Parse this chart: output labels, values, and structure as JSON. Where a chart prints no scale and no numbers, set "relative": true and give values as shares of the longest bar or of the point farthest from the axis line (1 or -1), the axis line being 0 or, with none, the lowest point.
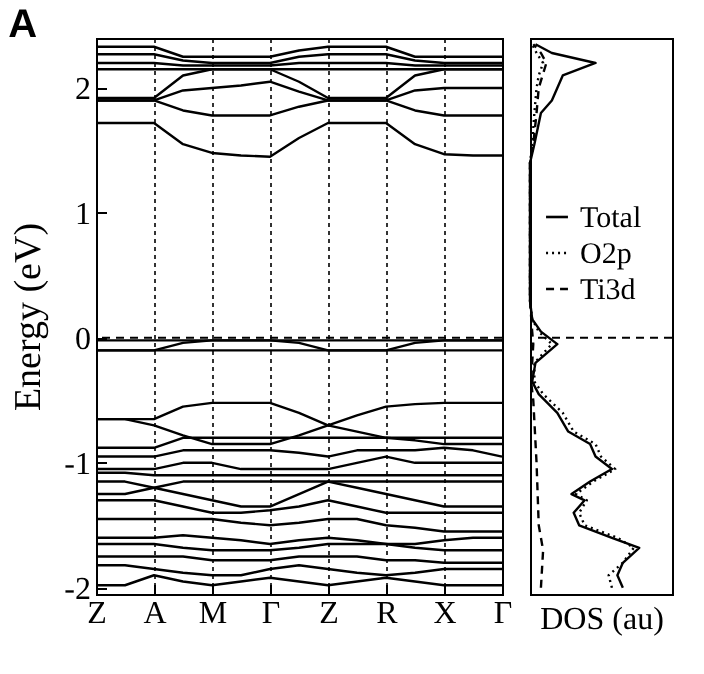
{
  "chart_data": [
    {
      "type": "line",
      "title": "A",
      "ylabel": "Energy (eV)",
      "marker": "none",
      "grid": "x",
      "line_style": "solid",
      "categories": [
        "Z",
        null,
        "A",
        null,
        "M",
        null,
        "Γ",
        null,
        "Z",
        null,
        "R",
        null,
        "X",
        null,
        "Γ"
      ],
      "ylim": [
        -2.05,
        2.4
      ],
      "yticks": [
        -2,
        -1,
        0,
        1,
        2
      ],
      "ref_lines": [
        {
          "axis": "y",
          "value": 0,
          "line_style": "dashed",
          "color": "#000000"
        }
      ],
      "series": [
        {
          "color": "#000000",
          "values": [
            2.33,
            2.33,
            2.33,
            2.25,
            2.25,
            2.25,
            2.25,
            2.3,
            2.33,
            2.33,
            2.33,
            2.25,
            2.25,
            2.25,
            2.25
          ]
        },
        {
          "color": "#000000",
          "values": [
            2.27,
            2.27,
            2.27,
            2.22,
            2.2,
            2.2,
            2.2,
            2.25,
            2.27,
            2.27,
            2.27,
            2.22,
            2.2,
            2.2,
            2.2
          ]
        },
        {
          "color": "#000000",
          "values": [
            2.2,
            2.2,
            2.2,
            2.18,
            2.18,
            2.18,
            2.18,
            2.2,
            2.2,
            2.2,
            2.2,
            2.18,
            2.18,
            2.18,
            2.18
          ]
        },
        {
          "color": "#000000",
          "values": [
            2.15,
            2.15,
            2.15,
            2.15,
            2.15,
            2.15,
            2.15,
            2.15,
            2.15,
            2.15,
            2.15,
            2.15,
            2.15,
            2.15,
            2.15
          ]
        },
        {
          "color": "#000000",
          "values": [
            1.92,
            1.92,
            1.92,
            2.1,
            2.15,
            2.15,
            2.15,
            2.05,
            1.92,
            1.92,
            1.92,
            2.1,
            2.15,
            2.15,
            2.15
          ]
        },
        {
          "color": "#000000",
          "values": [
            1.9,
            1.9,
            1.9,
            1.98,
            2.0,
            2.02,
            2.05,
            1.97,
            1.9,
            1.9,
            1.9,
            1.98,
            2.0,
            2.0,
            2.0
          ]
        },
        {
          "color": "#000000",
          "values": [
            1.9,
            1.9,
            1.9,
            1.82,
            1.78,
            1.78,
            1.78,
            1.85,
            1.9,
            1.9,
            1.9,
            1.82,
            1.78,
            1.78,
            1.78
          ]
        },
        {
          "color": "#000000",
          "values": [
            1.72,
            1.72,
            1.72,
            1.55,
            1.48,
            1.46,
            1.45,
            1.6,
            1.72,
            1.72,
            1.72,
            1.55,
            1.47,
            1.46,
            1.46
          ]
        },
        {
          "color": "#000000",
          "values": [
            -0.02,
            -0.02,
            -0.02,
            -0.02,
            -0.02,
            -0.02,
            -0.02,
            -0.02,
            -0.02,
            -0.02,
            -0.02,
            -0.02,
            -0.02,
            -0.02,
            -0.02
          ]
        },
        {
          "color": "#000000",
          "values": [
            -0.1,
            -0.1,
            -0.1,
            -0.04,
            -0.02,
            -0.02,
            -0.02,
            -0.04,
            -0.1,
            -0.1,
            -0.1,
            -0.04,
            -0.02,
            -0.02,
            -0.02
          ]
        },
        {
          "color": "#000000",
          "values": [
            -0.1,
            -0.1,
            -0.1,
            -0.1,
            -0.1,
            -0.1,
            -0.1,
            -0.1,
            -0.1,
            -0.1,
            -0.1,
            -0.1,
            -0.1,
            -0.1,
            -0.1
          ]
        },
        {
          "color": "#000000",
          "values": [
            -0.65,
            -0.65,
            -0.65,
            -0.55,
            -0.52,
            -0.52,
            -0.52,
            -0.6,
            -0.7,
            -0.62,
            -0.55,
            -0.53,
            -0.52,
            -0.52,
            -0.52
          ]
        },
        {
          "color": "#000000",
          "values": [
            -0.65,
            -0.65,
            -0.7,
            -0.78,
            -0.85,
            -0.85,
            -0.85,
            -0.78,
            -0.7,
            -0.75,
            -0.8,
            -0.8,
            -0.8,
            -0.8,
            -0.8
          ]
        },
        {
          "color": "#000000",
          "values": [
            -0.88,
            -0.88,
            -0.88,
            -0.8,
            -0.8,
            -0.8,
            -0.8,
            -0.8,
            -0.8,
            -0.8,
            -0.8,
            -0.82,
            -0.85,
            -0.85,
            -0.85
          ]
        },
        {
          "color": "#000000",
          "values": [
            -0.95,
            -0.95,
            -0.95,
            -0.9,
            -0.9,
            -0.9,
            -0.9,
            -0.92,
            -0.95,
            -0.9,
            -0.9,
            -0.9,
            -0.88,
            -0.9,
            -0.95
          ]
        },
        {
          "color": "#000000",
          "values": [
            -1.05,
            -1.05,
            -1.05,
            -1.0,
            -1.0,
            -1.05,
            -1.05,
            -1.05,
            -1.05,
            -1.0,
            -0.95,
            -1.0,
            -1.0,
            -1.0,
            -1.0
          ]
        },
        {
          "color": "#000000",
          "values": [
            -1.08,
            -1.08,
            -1.1,
            -1.1,
            -1.1,
            -1.1,
            -1.1,
            -1.1,
            -1.1,
            -1.1,
            -1.1,
            -1.1,
            -1.1,
            -1.1,
            -1.1
          ]
        },
        {
          "color": "#000000",
          "values": [
            -1.15,
            -1.15,
            -1.2,
            -1.25,
            -1.3,
            -1.35,
            -1.35,
            -1.25,
            -1.15,
            -1.2,
            -1.25,
            -1.3,
            -1.35,
            -1.35,
            -1.35
          ]
        },
        {
          "color": "#000000",
          "values": [
            -1.25,
            -1.25,
            -1.2,
            -1.15,
            -1.15,
            -1.15,
            -1.15,
            -1.15,
            -1.15,
            -1.15,
            -1.15,
            -1.15,
            -1.15,
            -1.15,
            -1.15
          ]
        },
        {
          "color": "#000000",
          "values": [
            -1.3,
            -1.3,
            -1.3,
            -1.35,
            -1.4,
            -1.4,
            -1.38,
            -1.35,
            -1.3,
            -1.35,
            -1.4,
            -1.4,
            -1.4,
            -1.4,
            -1.4
          ]
        },
        {
          "color": "#000000",
          "values": [
            -1.45,
            -1.45,
            -1.45,
            -1.45,
            -1.45,
            -1.48,
            -1.5,
            -1.48,
            -1.45,
            -1.45,
            -1.5,
            -1.52,
            -1.55,
            -1.55,
            -1.55
          ]
        },
        {
          "color": "#000000",
          "values": [
            -1.6,
            -1.6,
            -1.6,
            -1.58,
            -1.6,
            -1.62,
            -1.65,
            -1.62,
            -1.6,
            -1.62,
            -1.65,
            -1.65,
            -1.62,
            -1.6,
            -1.6
          ]
        },
        {
          "color": "#000000",
          "values": [
            -1.65,
            -1.65,
            -1.65,
            -1.68,
            -1.7,
            -1.7,
            -1.7,
            -1.68,
            -1.65,
            -1.65,
            -1.65,
            -1.68,
            -1.7,
            -1.7,
            -1.7
          ]
        },
        {
          "color": "#000000",
          "values": [
            -1.75,
            -1.75,
            -1.75,
            -1.75,
            -1.78,
            -1.78,
            -1.78,
            -1.75,
            -1.75,
            -1.75,
            -1.78,
            -1.78,
            -1.8,
            -1.8,
            -1.8
          ]
        },
        {
          "color": "#000000",
          "values": [
            -1.82,
            -1.82,
            -1.85,
            -1.88,
            -1.9,
            -1.9,
            -1.85,
            -1.82,
            -1.85,
            -1.88,
            -1.9,
            -1.88,
            -1.85,
            -1.85,
            -1.85
          ]
        },
        {
          "color": "#000000",
          "values": [
            -1.98,
            -1.98,
            -1.9,
            -1.95,
            -1.98,
            -1.95,
            -1.92,
            -1.95,
            -1.98,
            -1.95,
            -1.92,
            -1.95,
            -1.98,
            -1.98,
            -1.98
          ]
        }
      ]
    },
    {
      "type": "line",
      "orientation": "horizontal",
      "relative": true,
      "xlabel": "DOS (au)",
      "ylim": [
        -2.05,
        2.4
      ],
      "tick_labels": false,
      "legend": "right",
      "marker": "none",
      "ref_lines": [
        {
          "axis": "y",
          "value": 0,
          "line_style": "dashed",
          "color": "#000000"
        }
      ],
      "series": [
        {
          "name": "Total",
          "color": "#000000",
          "line_style": "solid",
          "x": [
            -2.0,
            -1.9,
            -1.8,
            -1.68,
            -1.6,
            -1.5,
            -1.4,
            -1.3,
            -1.25,
            -1.15,
            -1.05,
            -0.95,
            -0.85,
            -0.75,
            -0.6,
            -0.45,
            -0.35,
            -0.2,
            -0.05,
            0.05,
            0.15,
            0.3,
            1.0,
            1.4,
            1.55,
            1.8,
            1.9,
            2.0,
            2.1,
            2.2,
            2.28,
            2.35
          ],
          "values": [
            0.85,
            0.8,
            0.85,
            1.0,
            0.75,
            0.45,
            0.4,
            0.5,
            0.38,
            0.55,
            0.75,
            0.6,
            0.55,
            0.35,
            0.25,
            0.08,
            0.02,
            0.05,
            0.25,
            0.1,
            0.02,
            0,
            0,
            0,
            0.04,
            0.1,
            0.2,
            0.25,
            0.3,
            0.6,
            0.2,
            0.05
          ]
        },
        {
          "name": "O2p",
          "color": "#000000",
          "line_style": "dotted",
          "x": [
            -2.0,
            -1.9,
            -1.8,
            -1.68,
            -1.6,
            -1.5,
            -1.4,
            -1.3,
            -1.25,
            -1.15,
            -1.05,
            -0.95,
            -0.85,
            -0.75,
            -0.6,
            -0.45,
            -0.35,
            -0.2,
            -0.05,
            0.05,
            0.15,
            0.3,
            1.0,
            1.4,
            1.55,
            1.8,
            1.9,
            2.0,
            2.1,
            2.2,
            2.28,
            2.35
          ],
          "values": [
            0.75,
            0.72,
            0.85,
            0.95,
            0.8,
            0.5,
            0.45,
            0.52,
            0.42,
            0.58,
            0.78,
            0.65,
            0.6,
            0.4,
            0.3,
            0.12,
            0.04,
            0.04,
            0.2,
            0.08,
            0.02,
            0,
            0,
            0,
            0.02,
            0.04,
            0.05,
            0.06,
            0.08,
            0.12,
            0.06,
            0.02
          ]
        },
        {
          "name": "Ti3d",
          "color": "#000000",
          "line_style": "dashed",
          "x": [
            -2.0,
            -1.7,
            -1.5,
            -1.0,
            -0.5,
            -0.35,
            -0.05,
            0.05,
            0.3,
            1.4,
            1.55,
            1.8,
            2.0,
            2.2,
            2.28,
            2.35
          ],
          "values": [
            0.1,
            0.12,
            0.08,
            0.06,
            0.03,
            0.01,
            0.03,
            0.02,
            0,
            0,
            0.03,
            0.06,
            0.08,
            0.15,
            0.1,
            0.03
          ]
        }
      ]
    }
  ]
}
